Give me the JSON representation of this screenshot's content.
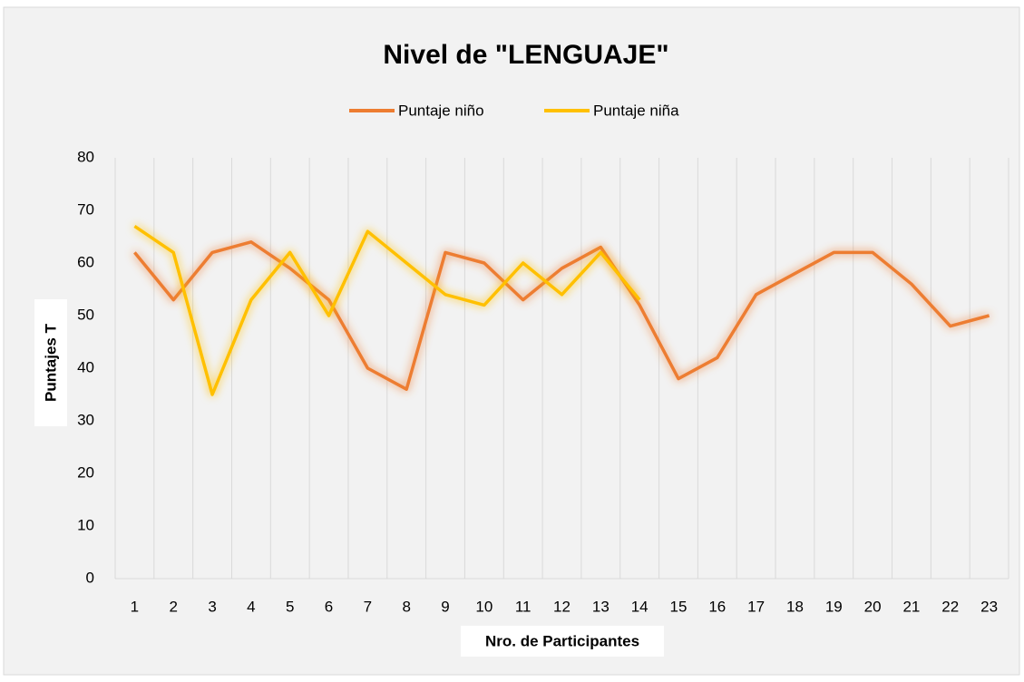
{
  "chart_data": {
    "type": "line",
    "title": "Nivel de \"LENGUAJE\"",
    "xlabel": "Nro. de Participantes",
    "ylabel": "Puntajes T",
    "categories": [
      "1",
      "2",
      "3",
      "4",
      "5",
      "6",
      "7",
      "8",
      "9",
      "10",
      "11",
      "12",
      "13",
      "14",
      "15",
      "16",
      "17",
      "18",
      "19",
      "20",
      "21",
      "22",
      "23"
    ],
    "series": [
      {
        "name": "Puntaje niño",
        "color": "#ed7d31",
        "values": [
          62,
          53,
          62,
          64,
          59,
          53,
          40,
          36,
          62,
          60,
          53,
          59,
          63,
          52,
          38,
          42,
          54,
          58,
          62,
          62,
          56,
          48,
          50
        ]
      },
      {
        "name": "Puntaje niña",
        "color": "#ffc000",
        "values": [
          67,
          62,
          35,
          53,
          62,
          50,
          66,
          60,
          54,
          52,
          60,
          54,
          62,
          53,
          null,
          null,
          null,
          null,
          null,
          null,
          null,
          null,
          null
        ]
      }
    ],
    "ylim": [
      0,
      80
    ],
    "yticks": [
      0,
      10,
      20,
      30,
      40,
      50,
      60,
      70,
      80
    ],
    "grid": {
      "x": true,
      "y": false
    },
    "legend": "top"
  }
}
